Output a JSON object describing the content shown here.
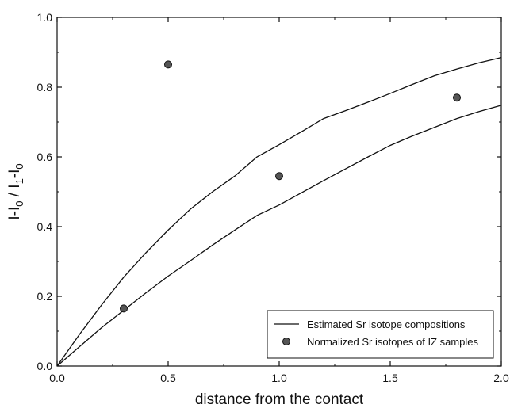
{
  "chart_data": {
    "type": "line",
    "title": "",
    "xlabel": "distance from the contact",
    "ylabel": {
      "parts": [
        {
          "text": "I-I",
          "sub": false
        },
        {
          "text": "0",
          "sub": true
        },
        {
          "text": " / I",
          "sub": false
        },
        {
          "text": "1",
          "sub": true
        },
        {
          "text": "-I",
          "sub": false
        },
        {
          "text": "0",
          "sub": true
        }
      ]
    },
    "xlim": [
      0.0,
      2.0
    ],
    "ylim": [
      0.0,
      1.0
    ],
    "x_ticks": [
      {
        "value": 0.0,
        "label": "0.0"
      },
      {
        "value": 0.5,
        "label": "0.5"
      },
      {
        "value": 1.0,
        "label": "1.0"
      },
      {
        "value": 1.5,
        "label": "1.5"
      },
      {
        "value": 2.0,
        "label": "2.0"
      }
    ],
    "y_ticks": [
      {
        "value": 0.0,
        "label": "0.0"
      },
      {
        "value": 0.2,
        "label": "0.2"
      },
      {
        "value": 0.4,
        "label": "0.4"
      },
      {
        "value": 0.6,
        "label": "0.6"
      },
      {
        "value": 0.8,
        "label": "0.8"
      },
      {
        "value": 1.0,
        "label": "1.0"
      }
    ],
    "grid": false,
    "legend_position": "bottom-right",
    "series": [
      {
        "name": "Estimated Sr isotope compositions",
        "kind": "line",
        "color": "#111111",
        "curves": [
          {
            "x": [
              0.0,
              0.1,
              0.2,
              0.3,
              0.4,
              0.5,
              0.6,
              0.7,
              0.8,
              0.9,
              1.0,
              1.1,
              1.2,
              1.3,
              1.4,
              1.5,
              1.6,
              1.7,
              1.8,
              1.9,
              2.0
            ],
            "y": [
              0.0,
              0.09,
              0.175,
              0.255,
              0.325,
              0.39,
              0.45,
              0.5,
              0.545,
              0.6,
              0.635,
              0.672,
              0.71,
              0.733,
              0.757,
              0.782,
              0.808,
              0.833,
              0.852,
              0.87,
              0.885
            ]
          },
          {
            "x": [
              0.0,
              0.1,
              0.2,
              0.3,
              0.4,
              0.5,
              0.6,
              0.7,
              0.8,
              0.9,
              1.0,
              1.1,
              1.2,
              1.3,
              1.4,
              1.5,
              1.6,
              1.7,
              1.8,
              1.9,
              2.0
            ],
            "y": [
              0.0,
              0.055,
              0.11,
              0.16,
              0.21,
              0.258,
              0.302,
              0.347,
              0.39,
              0.432,
              0.462,
              0.497,
              0.532,
              0.566,
              0.6,
              0.633,
              0.66,
              0.685,
              0.71,
              0.73,
              0.748
            ]
          }
        ]
      },
      {
        "name": "Normalized Sr isotopes of IZ samples",
        "kind": "scatter",
        "color": "#555555",
        "x": [
          0.3,
          0.5,
          1.0,
          1.8
        ],
        "y": [
          0.165,
          0.865,
          0.545,
          0.77
        ]
      }
    ]
  }
}
